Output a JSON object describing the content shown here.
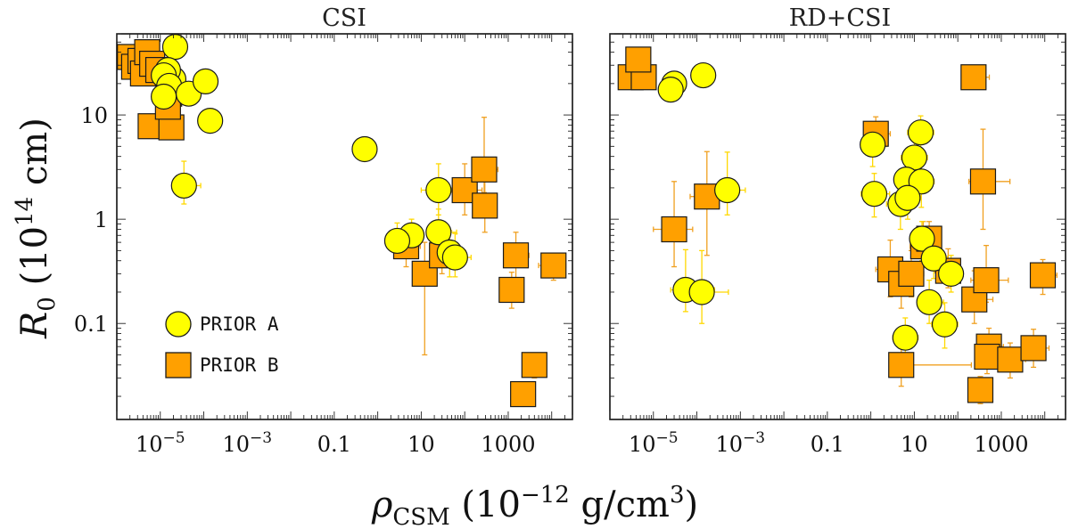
{
  "chart_data": {
    "type": "scatter",
    "xscale": "log",
    "yscale": "log",
    "xlim": [
      1e-06,
      30000
    ],
    "ylim": [
      0.012,
      60
    ],
    "ylabel_display": {
      "base": "R",
      "sub": "0",
      "rest": "(10",
      "exp": "14",
      "unit": " cm)"
    },
    "xlabel_display": {
      "base": "ρ",
      "sub": "CSM",
      "rest": "(10",
      "exp": "−12",
      "unit": " g/cm",
      "unit_exp": "3",
      "close": ")"
    },
    "xticks": [
      {
        "value": 1e-05,
        "base": "10",
        "exp": "−5"
      },
      {
        "value": 0.001,
        "base": "10",
        "exp": "−3"
      },
      {
        "value": 0.1,
        "label": "0.1"
      },
      {
        "value": 10,
        "label": "10"
      },
      {
        "value": 1000,
        "label": "1000"
      }
    ],
    "yticks": [
      {
        "value": 0.1,
        "label": "0.1"
      },
      {
        "value": 1,
        "label": "1"
      },
      {
        "value": 10,
        "label": "10"
      }
    ],
    "legend": {
      "position": "lower-left",
      "entries": [
        {
          "label": "PRIOR A",
          "marker": "circle",
          "color": "#ffff00"
        },
        {
          "label": "PRIOR B",
          "marker": "square",
          "color": "#ffa000"
        }
      ]
    },
    "colors": {
      "prior_a": "#ffff00",
      "prior_b": "#ffa000",
      "err_a": "#ffd800",
      "err_b": "#f0a020",
      "edge": "#1a1a1a"
    },
    "panels": [
      {
        "title": "CSI",
        "series": [
          {
            "name": "PRIOR B",
            "marker": "square",
            "points": [
              {
                "x": 2e-06,
                "y": 36
              },
              {
                "x": 2.5e-06,
                "y": 29
              },
              {
                "x": 3.5e-06,
                "y": 33
              },
              {
                "x": 4e-06,
                "y": 25
              },
              {
                "x": 5e-06,
                "y": 40
              },
              {
                "x": 6.5e-06,
                "y": 31
              },
              {
                "x": 9e-06,
                "y": 27
              },
              {
                "x": 1.6e-05,
                "y": 16,
                "xerr": [
                  6e-06,
                  1e-05
                ],
                "yerr": [
                  4,
                  5
                ]
              },
              {
                "x": 6e-06,
                "y": 7.8,
                "xerr": [
                  2e-06,
                  2e-06
                ],
                "yerr": [
                  1.5,
                  2
                ]
              },
              {
                "x": 1.8e-05,
                "y": 7.6,
                "xerr": [
                  4e-06,
                  4e-06
                ],
                "yerr": [
                  1.5,
                  2
                ]
              },
              {
                "x": 1.5e-05,
                "y": 12,
                "xerr": [
                  4e-06,
                  4e-06
                ],
                "yerr": [
                  2,
                  2
                ]
              },
              {
                "x": 4.5,
                "y": 0.55,
                "xerr": [
                  2,
                  5
                ],
                "yerr": [
                  0.2,
                  0.3
                ]
              },
              {
                "x": 12,
                "y": 0.3,
                "xerr": [
                  5,
                  10
                ],
                "yerr": [
                  0.25,
                  0.3
                ]
              },
              {
                "x": 30,
                "y": 0.45,
                "xerr": [
                  12,
                  35
                ],
                "yerr": [
                  0.15,
                  0.2
                ]
              },
              {
                "x": 100,
                "y": 1.9,
                "xerr": [
                  50,
                  150
                ],
                "yerr": [
                  0.8,
                  1.5
                ]
              },
              {
                "x": 280,
                "y": 3,
                "xerr": [
                  120,
                  300
                ],
                "yerr": [
                  1.2,
                  6.5
                ]
              },
              {
                "x": 290,
                "y": 1.35,
                "xerr": [
                  100,
                  200
                ],
                "yerr": [
                  0.6,
                  1.0
                ]
              },
              {
                "x": 1500,
                "y": 0.45,
                "xerr": [
                  500,
                  1500
                ],
                "yerr": [
                  0.2,
                  0.3
                ]
              },
              {
                "x": 1200,
                "y": 0.21,
                "xerr": [
                  400,
                  900
                ],
                "yerr": [
                  0.07,
                  0.1
                ]
              },
              {
                "x": 11000,
                "y": 0.36,
                "xerr": [
                  6000,
                  10000
                ],
                "yerr": [
                  0.1,
                  0.1
                ]
              },
              {
                "x": 4000,
                "y": 0.04,
                "xerr": [
                  1500,
                  2500
                ],
                "yerr": [
                  0.01,
                  0.012
                ]
              },
              {
                "x": 2200,
                "y": 0.021,
                "xerr": [
                  700,
                  1200
                ],
                "yerr": [
                  0.005,
                  0.006
                ]
              }
            ]
          },
          {
            "name": "PRIOR A",
            "marker": "circle",
            "points": [
              {
                "x": 2.2e-05,
                "y": 45
              },
              {
                "x": 2e-05,
                "y": 22
              },
              {
                "x": 1.5e-05,
                "y": 27
              },
              {
                "x": 1.2e-05,
                "y": 24
              },
              {
                "x": 1.6e-05,
                "y": 19
              },
              {
                "x": 1.2e-05,
                "y": 15
              },
              {
                "x": 4.5e-05,
                "y": 16
              },
              {
                "x": 0.00011,
                "y": 21
              },
              {
                "x": 0.00014,
                "y": 8.8
              },
              {
                "x": 3.5e-05,
                "y": 2.1,
                "xerr": [
                  1.5e-05,
                  5e-05
                ],
                "yerr": [
                  0.7,
                  1.5
                ]
              },
              {
                "x": 0.5,
                "y": 4.7
              },
              {
                "x": 6,
                "y": 0.7,
                "xerr": [
                  2,
                  4
                ],
                "yerr": [
                  0.25,
                  0.3
                ]
              },
              {
                "x": 2.8,
                "y": 0.62,
                "xerr": [
                  1,
                  2
                ],
                "yerr": [
                  0.2,
                  0.3
                ]
              },
              {
                "x": 25,
                "y": 1.9,
                "xerr": [
                  15,
                  60
                ],
                "yerr": [
                  0.8,
                  1.5
                ]
              },
              {
                "x": 25,
                "y": 0.75,
                "xerr": [
                  10,
                  40
                ],
                "yerr": [
                  0.3,
                  0.5
                ]
              },
              {
                "x": 45,
                "y": 0.48,
                "xerr": [
                  20,
                  60
                ],
                "yerr": [
                  0.2,
                  0.3
                ]
              },
              {
                "x": 60,
                "y": 0.43,
                "xerr": [
                  25,
                  80
                ],
                "yerr": [
                  0.15,
                  0.3
                ]
              }
            ]
          }
        ]
      },
      {
        "title": "RD+CSI",
        "series": [
          {
            "name": "PRIOR B",
            "marker": "square",
            "points": [
              {
                "x": 3e-06,
                "y": 23,
                "xerr": [
                  1e-06,
                  1e-06
                ],
                "yerr": [
                  3,
                  3
                ]
              },
              {
                "x": 6e-06,
                "y": 23
              },
              {
                "x": 4.5e-06,
                "y": 34
              },
              {
                "x": 3e-05,
                "y": 0.8,
                "xerr": [
                  2e-05,
                  5e-05
                ],
                "yerr": [
                  0.45,
                  1.5
                ]
              },
              {
                "x": 0.00017,
                "y": 1.65,
                "xerr": [
                  0.0001,
                  0.0004
                ],
                "yerr": [
                  1.2,
                  2.8
                ]
              },
              {
                "x": 1.3,
                "y": 6.6,
                "xerr": [
                  0.6,
                  1.5
                ],
                "yerr": [
                  2,
                  3
                ]
              },
              {
                "x": 2.8,
                "y": 0.33,
                "xerr": [
                  1.5,
                  3
                ],
                "yerr": [
                  0.15,
                  0.3
                ]
              },
              {
                "x": 5,
                "y": 0.24,
                "xerr": [
                  2,
                  4
                ],
                "yerr": [
                  0.1,
                  0.15
                ]
              },
              {
                "x": 5,
                "y": 0.04,
                "xerr": [
                  2,
                  200
                ],
                "yerr": [
                  0.015,
                  0.02
                ]
              },
              {
                "x": 8.5,
                "y": 0.3,
                "xerr": [
                  4,
                  8
                ],
                "yerr": [
                  0.12,
                  0.2
                ]
              },
              {
                "x": 16,
                "y": 0.55,
                "xerr": [
                  8,
                  16
                ],
                "yerr": [
                  0.2,
                  0.4
                ]
              },
              {
                "x": 22,
                "y": 0.65,
                "xerr": [
                  10,
                  20
                ],
                "yerr": [
                  0.2,
                  0.3
                ]
              },
              {
                "x": 60,
                "y": 0.32,
                "xerr": [
                  30,
                  60
                ],
                "yerr": [
                  0.1,
                  0.2
                ]
              },
              {
                "x": 240,
                "y": 0.17,
                "xerr": [
                  100,
                  400
                ],
                "yerr": [
                  0.07,
                  0.15
                ]
              },
              {
                "x": 380,
                "y": 2.3,
                "xerr": [
                  200,
                  1200
                ],
                "yerr": [
                  1.5,
                  5
                ]
              },
              {
                "x": 450,
                "y": 0.26,
                "xerr": [
                  250,
                  1000
                ],
                "yerr": [
                  0.1,
                  0.3
                ]
              },
              {
                "x": 520,
                "y": 0.06,
                "xerr": [
                  200,
                  600
                ],
                "yerr": [
                  0.02,
                  0.03
                ]
              },
              {
                "x": 470,
                "y": 0.048,
                "xerr": [
                  200,
                  600
                ],
                "yerr": [
                  0.015,
                  0.02
                ]
              },
              {
                "x": 330,
                "y": 0.023,
                "xerr": [
                  100,
                  300
                ],
                "yerr": [
                  0.006,
                  0.008
                ]
              },
              {
                "x": 1600,
                "y": 0.045,
                "xerr": [
                  700,
                  2000
                ],
                "yerr": [
                  0.015,
                  0.02
                ]
              },
              {
                "x": 5500,
                "y": 0.058,
                "xerr": [
                  2500,
                  7000
                ],
                "yerr": [
                  0.02,
                  0.03
                ]
              },
              {
                "x": 9000,
                "y": 0.29,
                "xerr": [
                  4000,
                  10000
                ],
                "yerr": [
                  0.1,
                  0.12
                ]
              },
              {
                "x": 230,
                "y": 23,
                "xerr": [
                  100,
                  300
                ],
                "yerr": [
                  4,
                  4
                ]
              }
            ]
          },
          {
            "name": "PRIOR A",
            "marker": "circle",
            "points": [
              {
                "x": 3e-05,
                "y": 20
              },
              {
                "x": 2.5e-05,
                "y": 17.5
              },
              {
                "x": 0.00014,
                "y": 24
              },
              {
                "x": 0.0005,
                "y": 1.9,
                "xerr": [
                  0.0003,
                  0.0008
                ],
                "yerr": [
                  0.8,
                  2.5
                ]
              },
              {
                "x": 5.5e-05,
                "y": 0.21,
                "xerr": [
                  3e-05,
                  0.0002
                ],
                "yerr": [
                  0.08,
                  0.3
                ]
              },
              {
                "x": 0.00013,
                "y": 0.2,
                "xerr": [
                  8e-05,
                  0.0004
                ],
                "yerr": [
                  0.1,
                  0.3
                ]
              },
              {
                "x": 1.1,
                "y": 5.2,
                "xerr": [
                  0.5,
                  1.2
                ],
                "yerr": [
                  2,
                  3
                ]
              },
              {
                "x": 1.2,
                "y": 1.75,
                "xerr": [
                  0.6,
                  1.5
                ],
                "yerr": [
                  0.7,
                  1.0
                ]
              },
              {
                "x": 14,
                "y": 6.8,
                "xerr": [
                  7,
                  14
                ],
                "yerr": [
                  2.5,
                  3
                ]
              },
              {
                "x": 10,
                "y": 3.9,
                "xerr": [
                  5,
                  10
                ],
                "yerr": [
                  1.5,
                  2
                ]
              },
              {
                "x": 6.5,
                "y": 2.4,
                "xerr": [
                  3,
                  6
                ],
                "yerr": [
                  1,
                  1.5
                ]
              },
              {
                "x": 14.5,
                "y": 2.3,
                "xerr": [
                  7,
                  14
                ],
                "yerr": [
                  1,
                  1.5
                ]
              },
              {
                "x": 4.8,
                "y": 1.4,
                "xerr": [
                  2.5,
                  5
                ],
                "yerr": [
                  0.6,
                  1
                ]
              },
              {
                "x": 7,
                "y": 1.6,
                "xerr": [
                  3,
                  7
                ],
                "yerr": [
                  0.6,
                  1
                ]
              },
              {
                "x": 15,
                "y": 0.65,
                "xerr": [
                  7,
                  14
                ],
                "yerr": [
                  0.25,
                  0.3
                ]
              },
              {
                "x": 28,
                "y": 0.42,
                "xerr": [
                  12,
                  30
                ],
                "yerr": [
                  0.15,
                  0.2
                ]
              },
              {
                "x": 70,
                "y": 0.3,
                "xerr": [
                  30,
                  60
                ],
                "yerr": [
                  0.1,
                  0.15
                ]
              },
              {
                "x": 22,
                "y": 0.16,
                "xerr": [
                  10,
                  25
                ],
                "yerr": [
                  0.06,
                  0.1
                ]
              },
              {
                "x": 50,
                "y": 0.098,
                "xerr": [
                  25,
                  50
                ],
                "yerr": [
                  0.04,
                  0.06
                ]
              },
              {
                "x": 6.2,
                "y": 0.073,
                "xerr": [
                  3,
                  6
                ],
                "yerr": [
                  0.03,
                  0.04
                ]
              }
            ]
          }
        ]
      }
    ]
  }
}
